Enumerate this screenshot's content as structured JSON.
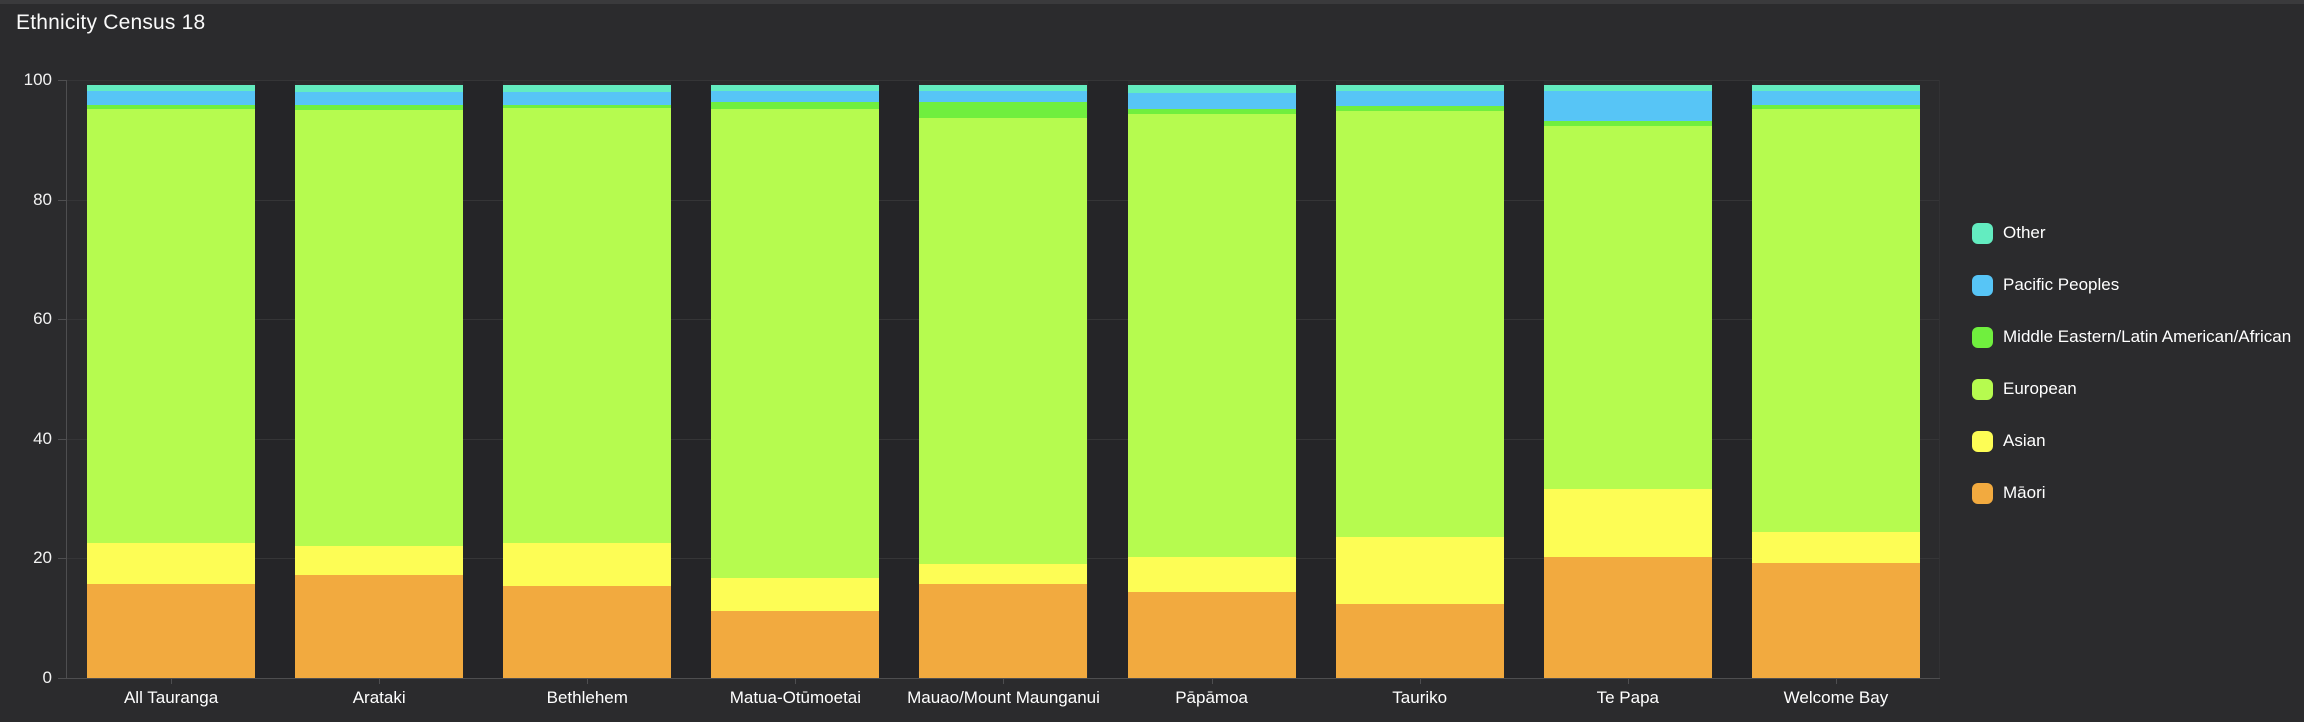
{
  "chart_data": {
    "type": "bar",
    "variant": "stacked-percent-column",
    "title": "Ethnicity Census 18",
    "categories": [
      "All Tauranga",
      "Arataki",
      "Bethlehem",
      "Matua-Otūmoetai",
      "Mauao/Mount Maunganui",
      "Pāpāmoa",
      "Tauriko",
      "Te Papa",
      "Welcome Bay"
    ],
    "series": [
      {
        "name": "Māori",
        "color": "#f2aa3f",
        "values": [
          15.8,
          17.3,
          15.4,
          11.2,
          15.8,
          14.4,
          12.4,
          20.3,
          19.2
        ]
      },
      {
        "name": "Asian",
        "color": "#fdfd55",
        "values": [
          6.7,
          4.8,
          7.2,
          5.5,
          3.2,
          5.8,
          11.1,
          11.3,
          5.2
        ]
      },
      {
        "name": "European",
        "color": "#b6fb4f",
        "values": [
          72.6,
          72.9,
          72.7,
          78.4,
          74.7,
          74.1,
          71.4,
          60.7,
          70.7
        ]
      },
      {
        "name": "Middle Eastern/Latin American/African",
        "color": "#70ef3e",
        "values": [
          0.7,
          0.9,
          0.5,
          1.2,
          2.6,
          0.9,
          0.8,
          0.8,
          0.7
        ]
      },
      {
        "name": "Pacific Peoples",
        "color": "#57c5f6",
        "values": [
          2.4,
          2.1,
          2.2,
          1.8,
          1.9,
          2.6,
          2.4,
          5.1,
          2.4
        ]
      },
      {
        "name": "Other",
        "color": "#63ecc0",
        "values": [
          1.0,
          1.1,
          1.2,
          1.1,
          1.0,
          1.4,
          1.1,
          1.0,
          1.0
        ]
      }
    ],
    "ylim": [
      0,
      100
    ],
    "y_ticks": [
      0,
      20,
      40,
      60,
      80,
      100
    ],
    "grid": "horizontal",
    "legend_position": "right",
    "legend_order_top_to_bottom": [
      "Other",
      "Pacific Peoples",
      "Middle Eastern/Latin American/African",
      "European",
      "Asian",
      "Māori"
    ],
    "colors": {
      "background": "#2b2b2d",
      "top_strip": "#3a3a3c",
      "gridline": "#353537",
      "axis": "#4e4e50",
      "tick_text": "#f2f2f2",
      "label_text": "#ffffff",
      "title_text": "#fafafa",
      "column_gap_band": "#252528"
    }
  }
}
